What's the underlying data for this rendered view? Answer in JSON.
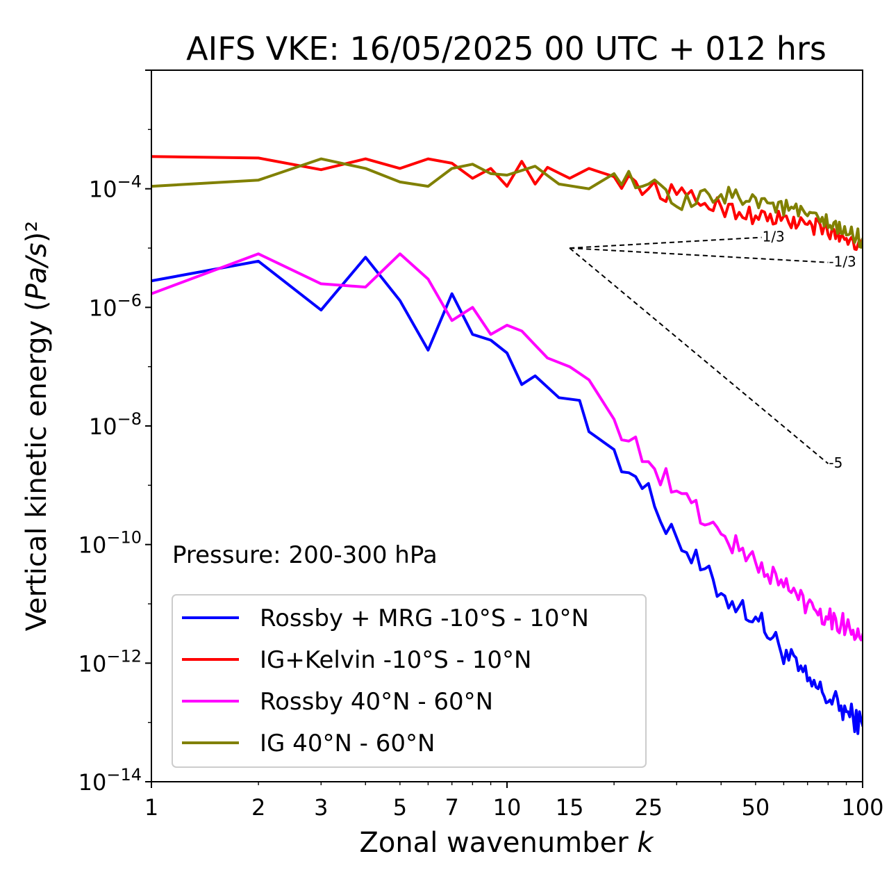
{
  "chart_data": {
    "type": "line",
    "title": "AIFS VKE: 16/05/2025 00 UTC + 012 hrs",
    "xlabel": "Zonal wavenumber k",
    "ylabel": "Vertical kinetic energy (Pa/s)²",
    "xscale": "log",
    "yscale": "log",
    "xlim": [
      1,
      100
    ],
    "ylim": [
      1e-14,
      0.01
    ],
    "x_ticks": [
      {
        "value": 1,
        "label": "1"
      },
      {
        "value": 2,
        "label": "2"
      },
      {
        "value": 3,
        "label": "3"
      },
      {
        "value": 5,
        "label": "5"
      },
      {
        "value": 7,
        "label": "7"
      },
      {
        "value": 10,
        "label": "10"
      },
      {
        "value": 15,
        "label": "15"
      },
      {
        "value": 25,
        "label": "25"
      },
      {
        "value": 50,
        "label": "50"
      },
      {
        "value": 100,
        "label": "100"
      }
    ],
    "y_ticks": [
      {
        "exp": -4,
        "base": "10",
        "sup": "−4"
      },
      {
        "exp": -6,
        "base": "10",
        "sup": "−6"
      },
      {
        "exp": -8,
        "base": "10",
        "sup": "−8"
      },
      {
        "exp": -10,
        "base": "10",
        "sup": "−10"
      },
      {
        "exp": -12,
        "base": "10",
        "sup": "−12"
      },
      {
        "exp": -14,
        "base": "10",
        "sup": "−14"
      }
    ],
    "annotation": "Pressure: 200-300 hPa",
    "legend_position": "lower-left",
    "grid": false,
    "reference_slopes": [
      {
        "label": "1/3",
        "slope": 0.3333,
        "k_start": 15,
        "k_end": 52,
        "y_start": 1e-05
      },
      {
        "label": "-1/3",
        "slope": -0.3333,
        "k_start": 15,
        "k_end": 80,
        "y_start": 1e-05
      },
      {
        "label": "-5",
        "slope": -5,
        "k_start": 15,
        "k_end": 80,
        "y_start": 1e-05
      }
    ],
    "series": [
      {
        "name": "Rossby + MRG -10°S - 10°N",
        "color": "#0000ff",
        "anchors": [
          [
            1,
            2.8e-06
          ],
          [
            2,
            6e-06
          ],
          [
            3,
            9e-07
          ],
          [
            4,
            7e-06
          ],
          [
            5,
            1.3e-06
          ],
          [
            6,
            1.9e-07
          ],
          [
            7,
            1.7e-06
          ],
          [
            8,
            3.5e-07
          ],
          [
            9,
            2.8e-07
          ],
          [
            10,
            1.7e-07
          ],
          [
            11,
            5e-08
          ],
          [
            12,
            7e-08
          ],
          [
            14,
            3e-08
          ],
          [
            16,
            2.7e-08
          ],
          [
            17,
            8e-09
          ],
          [
            20,
            4e-09
          ],
          [
            23,
            1.4e-09
          ],
          [
            30,
            1.3e-10
          ],
          [
            40,
            1.5e-11
          ],
          [
            50,
            6e-12
          ],
          [
            70,
            5e-13
          ],
          [
            100,
            9e-14
          ]
        ],
        "noise_start": 20,
        "noise_amp": 0.22
      },
      {
        "name": "IG+Kelvin -10°S - 10°N",
        "color": "#ff0000",
        "anchors": [
          [
            1,
            0.00035
          ],
          [
            2,
            0.00033
          ],
          [
            3,
            0.00021
          ],
          [
            4,
            0.00032
          ],
          [
            5,
            0.00022
          ],
          [
            6,
            0.00032
          ],
          [
            7,
            0.00027
          ],
          [
            8,
            0.00015
          ],
          [
            9,
            0.00022
          ],
          [
            10,
            0.00011
          ],
          [
            11,
            0.00029
          ],
          [
            12,
            0.00012
          ],
          [
            13,
            0.00023
          ],
          [
            15,
            0.00015
          ],
          [
            17,
            0.00022
          ],
          [
            20,
            0.00016
          ],
          [
            25,
            0.0001
          ],
          [
            30,
            8e-05
          ],
          [
            40,
            5e-05
          ],
          [
            50,
            3.5e-05
          ],
          [
            70,
            2.5e-05
          ],
          [
            100,
            1.2e-05
          ]
        ],
        "noise_start": 20,
        "noise_amp": 0.16
      },
      {
        "name": "Rossby 40°N - 60°N",
        "color": "#ff00ff",
        "anchors": [
          [
            1,
            1.7e-06
          ],
          [
            2,
            8e-06
          ],
          [
            3,
            2.5e-06
          ],
          [
            4,
            2.2e-06
          ],
          [
            5,
            8e-06
          ],
          [
            6,
            3e-06
          ],
          [
            7,
            6e-07
          ],
          [
            8,
            1e-06
          ],
          [
            9,
            3.5e-07
          ],
          [
            10,
            5e-07
          ],
          [
            11,
            4e-07
          ],
          [
            13,
            1.4e-07
          ],
          [
            15,
            1e-07
          ],
          [
            17,
            6e-08
          ],
          [
            20,
            1.3e-08
          ],
          [
            25,
            2.5e-09
          ],
          [
            30,
            8e-10
          ],
          [
            40,
            1.5e-10
          ],
          [
            50,
            5e-11
          ],
          [
            70,
            1e-11
          ],
          [
            100,
            3e-12
          ]
        ],
        "noise_start": 20,
        "noise_amp": 0.2
      },
      {
        "name": "IG 40°N - 60°N",
        "color": "#808000",
        "anchors": [
          [
            1,
            0.00011
          ],
          [
            2,
            0.00014
          ],
          [
            3,
            0.00032
          ],
          [
            4,
            0.00022
          ],
          [
            5,
            0.00013
          ],
          [
            6,
            0.00011
          ],
          [
            7,
            0.00022
          ],
          [
            8,
            0.00026
          ],
          [
            9,
            0.00018
          ],
          [
            10,
            0.00017
          ],
          [
            12,
            0.00024
          ],
          [
            14,
            0.00012
          ],
          [
            17,
            0.0001
          ],
          [
            20,
            0.00018
          ],
          [
            25,
            0.00012
          ],
          [
            30,
            5e-05
          ],
          [
            40,
            8e-05
          ],
          [
            50,
            7e-05
          ],
          [
            70,
            3.5e-05
          ],
          [
            100,
            1.4e-05
          ]
        ],
        "noise_start": 20,
        "noise_amp": 0.16
      }
    ]
  }
}
